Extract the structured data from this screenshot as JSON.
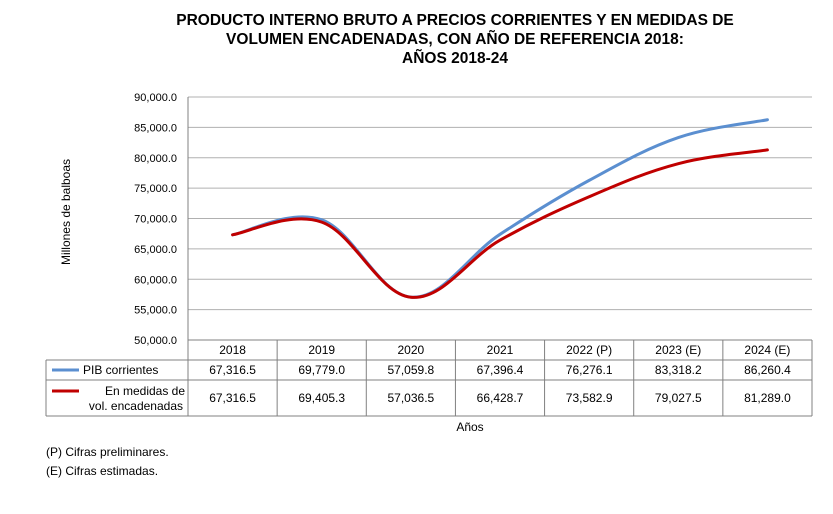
{
  "chart_data": {
    "type": "line",
    "title_lines": [
      "PRODUCTO INTERNO BRUTO A PRECIOS CORRIENTES Y  EN MEDIDAS DE",
      "VOLUMEN ENCADENADAS,  CON AÑO DE REFERENCIA 2018:",
      "AÑOS 2018-24"
    ],
    "xlabel": "Años",
    "ylabel": "Millones de balboas",
    "ylim": [
      50000,
      90000
    ],
    "yticks": [
      "50,000.0",
      "55,000.0",
      "60,000.0",
      "65,000.0",
      "70,000.0",
      "75,000.0",
      "80,000.0",
      "85,000.0",
      "90,000.0"
    ],
    "ytick_values": [
      50000,
      55000,
      60000,
      65000,
      70000,
      75000,
      80000,
      85000,
      90000
    ],
    "grid": true,
    "categories": [
      "2018",
      "2019",
      "2020",
      "2021",
      "2022 (P)",
      "2023 (E)",
      "2024 (E)"
    ],
    "series": [
      {
        "name": "PIB corrientes",
        "color": "#5b8fd0",
        "values": [
          67316.5,
          69779.0,
          57059.8,
          67396.4,
          76276.1,
          83318.2,
          86260.4
        ],
        "labels": [
          "67,316.5",
          "69,779.0",
          "57,059.8",
          "67,396.4",
          "76,276.1",
          "83,318.2",
          "86,260.4"
        ]
      },
      {
        "name_lines": [
          "En medidas de",
          "vol. encadenadas"
        ],
        "color": "#c00000",
        "values": [
          67316.5,
          69405.3,
          57036.5,
          66428.7,
          73582.9,
          79027.5,
          81289.0
        ],
        "labels": [
          "67,316.5",
          "69,405.3",
          "57,036.5",
          "66,428.7",
          "73,582.9",
          "79,027.5",
          "81,289.0"
        ]
      }
    ],
    "legend": "data-table-left"
  },
  "notes": [
    "(P) Cifras preliminares.",
    "(E) Cifras estimadas."
  ]
}
